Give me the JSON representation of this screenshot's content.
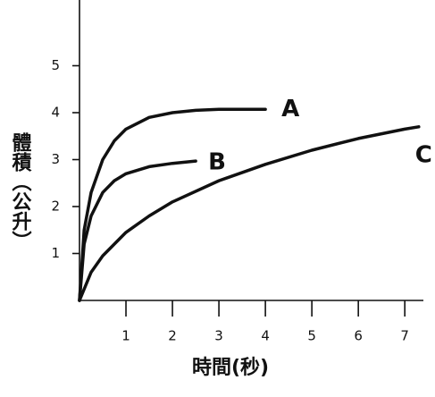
{
  "chart_data": {
    "type": "line",
    "x_label": "時間(秒)",
    "y_label": "體積（公升）",
    "xlim": [
      0,
      7.4
    ],
    "ylim": [
      0,
      6.4
    ],
    "xticks": [
      1,
      2,
      3,
      4,
      5,
      6,
      7
    ],
    "yticks": [
      1,
      2,
      3,
      4,
      5
    ],
    "series": [
      {
        "name": "A",
        "color": "#111111",
        "x": [
          0,
          0.1,
          0.25,
          0.5,
          0.75,
          1,
          1.5,
          2,
          2.5,
          3,
          4
        ],
        "values": [
          0,
          1.5,
          2.3,
          3.0,
          3.4,
          3.65,
          3.9,
          4.0,
          4.05,
          4.07,
          4.07
        ]
      },
      {
        "name": "B",
        "color": "#111111",
        "x": [
          0,
          0.1,
          0.25,
          0.5,
          0.75,
          1,
          1.5,
          2,
          2.5
        ],
        "values": [
          0,
          1.2,
          1.8,
          2.3,
          2.55,
          2.7,
          2.85,
          2.92,
          2.97
        ]
      },
      {
        "name": "C",
        "color": "#111111",
        "x": [
          0,
          0.25,
          0.5,
          1,
          1.5,
          2,
          3,
          4,
          5,
          6,
          7,
          7.3
        ],
        "values": [
          0,
          0.6,
          0.95,
          1.45,
          1.8,
          2.1,
          2.55,
          2.9,
          3.2,
          3.45,
          3.65,
          3.7
        ]
      }
    ]
  }
}
